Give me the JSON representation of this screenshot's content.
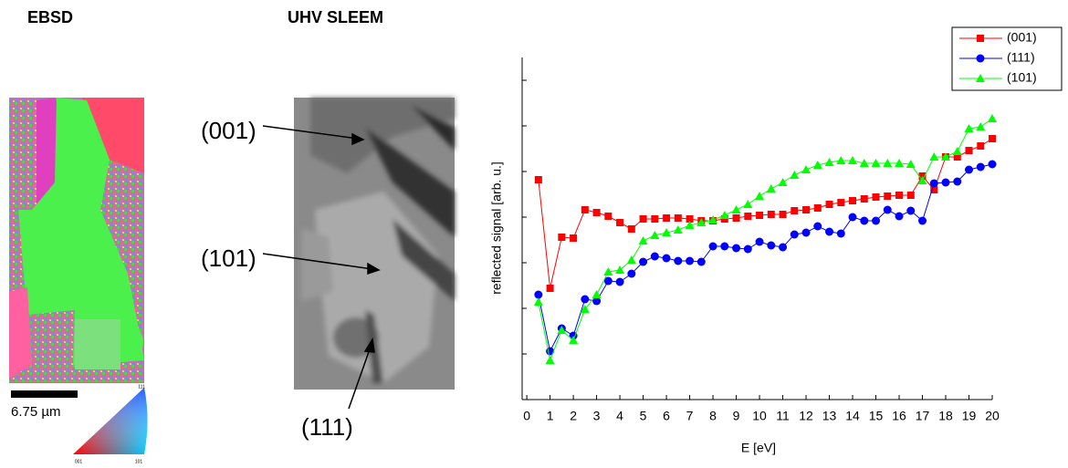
{
  "figure": {
    "ebsd": {
      "title": "EBSD",
      "scale_label": "6.75 µm",
      "corner_top": "111",
      "corner_left": "001",
      "corner_right": "101"
    },
    "sleem": {
      "title": "UHV SLEEM",
      "labels": [
        "(001)",
        "(101)",
        "(111)"
      ]
    }
  },
  "chart_data": {
    "type": "line",
    "x_label": "E [eV]",
    "y_label": "reflected signal [arb. u.]",
    "x": [
      0.5,
      1,
      1.5,
      2,
      2.5,
      3,
      3.5,
      4,
      4.5,
      5,
      5.5,
      6,
      6.5,
      7,
      7.5,
      8,
      8.5,
      9,
      9.5,
      10,
      10.5,
      11,
      11.5,
      12,
      12.5,
      13,
      13.5,
      14,
      14.5,
      15,
      15.5,
      16,
      16.5,
      17,
      17.5,
      18,
      18.5,
      19,
      19.5,
      20
    ],
    "xlim": [
      -0.2,
      20
    ],
    "xticks": [
      0,
      1,
      2,
      3,
      4,
      5,
      6,
      7,
      8,
      9,
      10,
      11,
      12,
      13,
      14,
      15,
      16,
      17,
      18,
      19,
      20
    ],
    "ylim": [
      0,
      7.5
    ],
    "yticks": [
      0,
      1,
      2,
      3,
      4,
      5,
      6,
      7
    ],
    "legend": "upper right",
    "series": [
      {
        "name": "(001)",
        "color": "#ff0000",
        "marker": "square",
        "values": [
          4.82,
          2.44,
          3.56,
          3.54,
          4.16,
          4.1,
          4.02,
          3.88,
          3.74,
          3.96,
          3.96,
          3.98,
          3.98,
          3.96,
          3.92,
          3.92,
          3.96,
          3.98,
          4.02,
          4.04,
          4.06,
          4.06,
          4.14,
          4.16,
          4.2,
          4.28,
          4.32,
          4.36,
          4.4,
          4.44,
          4.46,
          4.48,
          4.48,
          4.9,
          4.6,
          5.32,
          5.32,
          5.46,
          5.56,
          5.72
        ]
      },
      {
        "name": "(111)",
        "color": "#0000ff",
        "marker": "circle",
        "values": [
          2.3,
          1.06,
          1.56,
          1.4,
          2.2,
          2.16,
          2.6,
          2.58,
          2.76,
          3.02,
          3.14,
          3.1,
          3.04,
          3.04,
          3.02,
          3.36,
          3.36,
          3.32,
          3.3,
          3.46,
          3.38,
          3.34,
          3.62,
          3.66,
          3.8,
          3.68,
          3.64,
          4.0,
          3.92,
          3.92,
          4.16,
          4.02,
          4.14,
          3.92,
          4.74,
          4.76,
          4.78,
          5.04,
          5.1,
          5.16
        ]
      },
      {
        "name": "(101)",
        "color": "#00ff00",
        "marker": "triangle",
        "values": [
          2.14,
          0.86,
          1.52,
          1.3,
          1.98,
          2.3,
          2.8,
          2.84,
          3.06,
          3.48,
          3.6,
          3.66,
          3.72,
          3.82,
          3.88,
          3.94,
          4.04,
          4.16,
          4.28,
          4.46,
          4.62,
          4.76,
          4.92,
          5.04,
          5.14,
          5.2,
          5.24,
          5.24,
          5.18,
          5.18,
          5.18,
          5.18,
          5.16,
          4.8,
          5.32,
          5.32,
          5.44,
          5.94,
          5.98,
          6.16
        ]
      }
    ]
  }
}
